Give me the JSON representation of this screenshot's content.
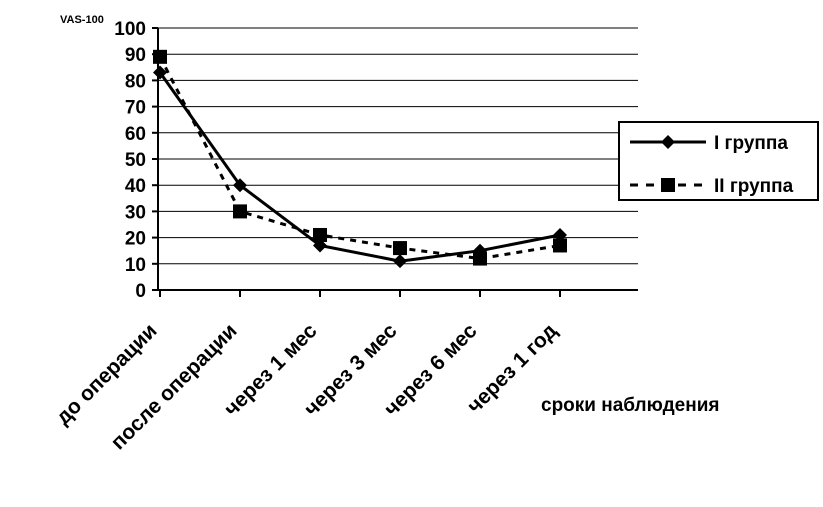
{
  "chart_data": {
    "type": "line",
    "ylabel": "VAS-100",
    "xlabel": "сроки наблюдения",
    "categories": [
      "до операции",
      "после операции",
      "через 1 мес",
      "через 3 мес",
      "через 6 мес",
      "через 1 год"
    ],
    "ylim": [
      0,
      100
    ],
    "yticks": [
      0,
      10,
      20,
      30,
      40,
      50,
      60,
      70,
      80,
      90,
      100
    ],
    "grid": "horizontal",
    "legend_position": "right",
    "series": [
      {
        "name": "I группа",
        "values": [
          83,
          40,
          17,
          11,
          15,
          21
        ],
        "marker": "diamond",
        "line": "solid",
        "color": "#000000"
      },
      {
        "name": "II группа",
        "values": [
          89,
          30,
          21,
          16,
          12,
          17
        ],
        "marker": "square",
        "line": "dashed",
        "color": "#000000"
      }
    ]
  }
}
